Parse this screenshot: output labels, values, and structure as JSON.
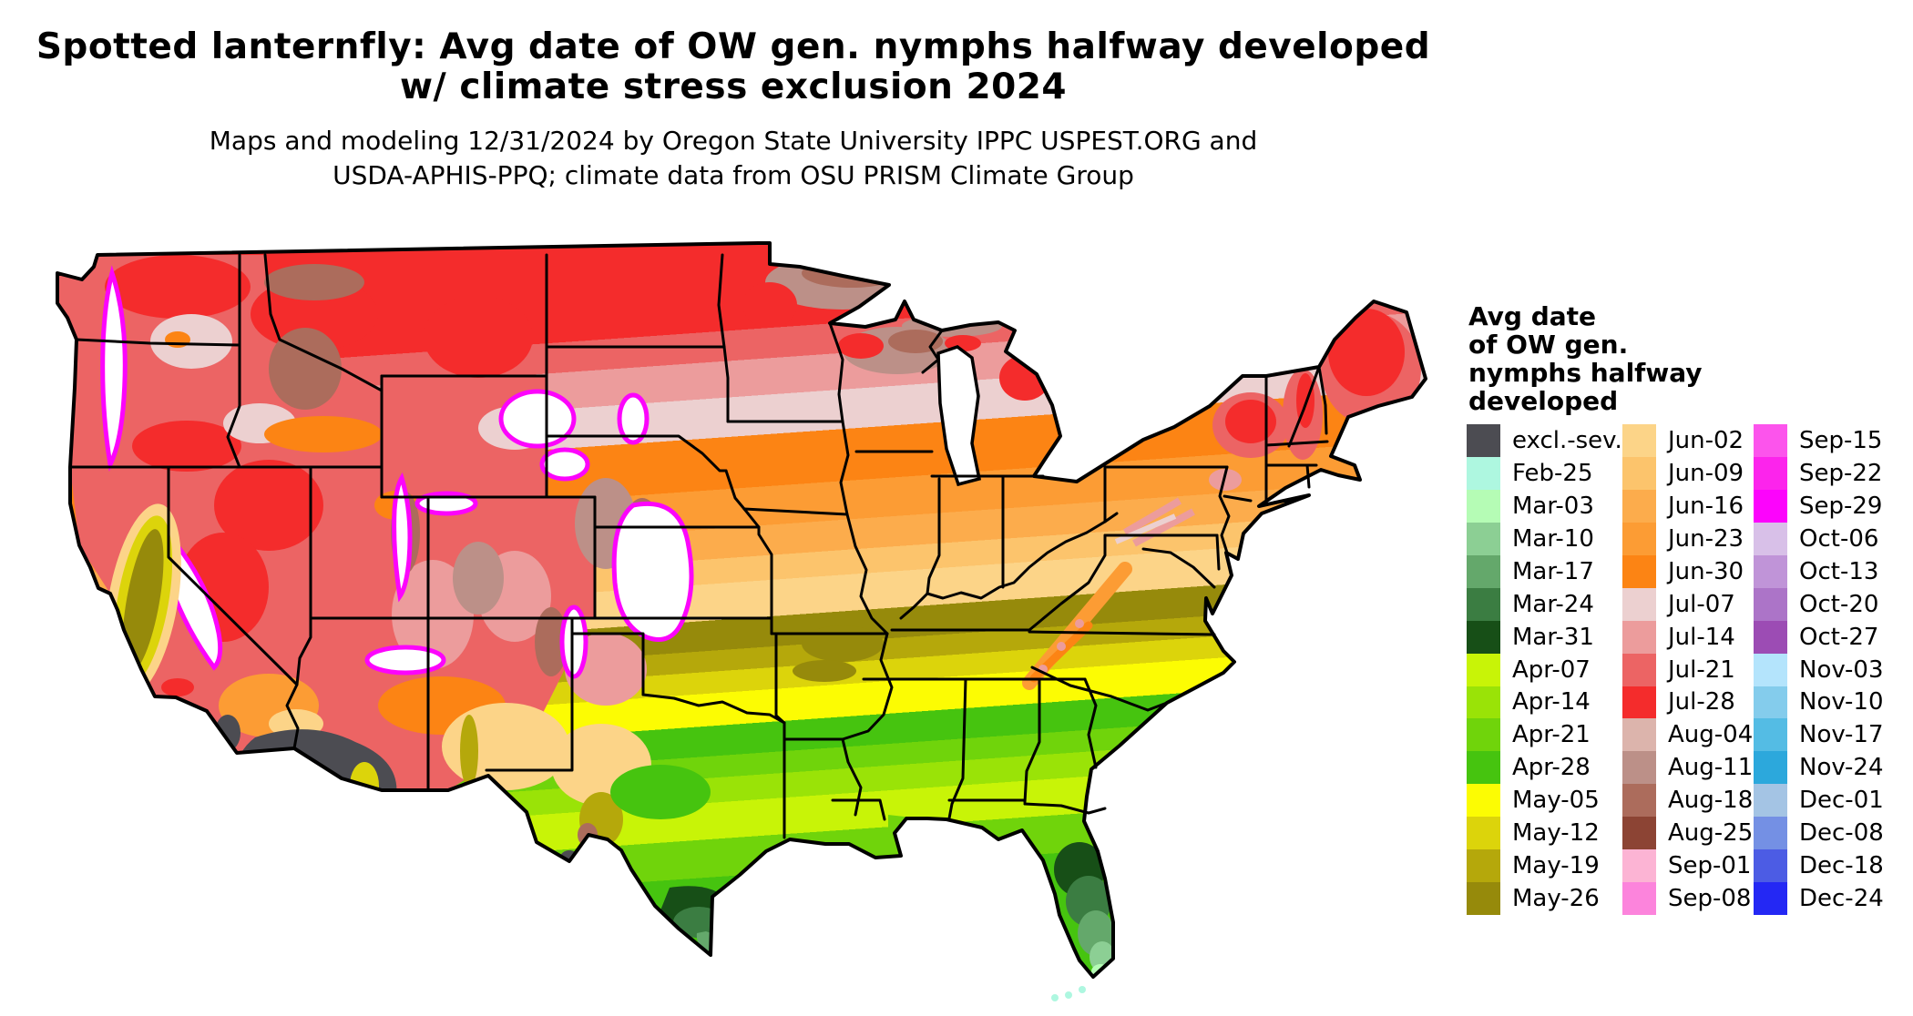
{
  "title": {
    "line1": "Spotted lanternfly: Avg date of OW gen. nymphs halfway developed",
    "line2": "w/ climate stress exclusion 2024"
  },
  "subtitle": {
    "line1": "Maps and modeling 12/31/2024 by Oregon State University IPPC USPEST.ORG and",
    "line2": "USDA-APHIS-PPQ; climate data from OSU PRISM Climate Group"
  },
  "legend": {
    "title_lines": [
      "Avg date",
      "of OW gen.",
      "nymphs halfway",
      "developed"
    ],
    "columns": [
      {
        "entries": [
          {
            "label": "excl.-sev.",
            "color": "#4c4c52"
          },
          {
            "label": "Feb-25",
            "color": "#aef7e0"
          },
          {
            "label": "Mar-03",
            "color": "#b5fcb5"
          },
          {
            "label": "Mar-10",
            "color": "#8ccf94"
          },
          {
            "label": "Mar-17",
            "color": "#64a86b"
          },
          {
            "label": "Mar-24",
            "color": "#3b7d42"
          },
          {
            "label": "Mar-31",
            "color": "#174f17"
          },
          {
            "label": "Apr-07",
            "color": "#c8f407"
          },
          {
            "label": "Apr-14",
            "color": "#9ae307"
          },
          {
            "label": "Apr-21",
            "color": "#70d40b"
          },
          {
            "label": "Apr-28",
            "color": "#46c40f"
          },
          {
            "label": "May-05",
            "color": "#fcfc03"
          },
          {
            "label": "May-12",
            "color": "#dcd40b"
          },
          {
            "label": "May-19",
            "color": "#b5a80b"
          },
          {
            "label": "May-26",
            "color": "#968a0b"
          }
        ]
      },
      {
        "entries": [
          {
            "label": "Jun-02",
            "color": "#fcd488"
          },
          {
            "label": "Jun-09",
            "color": "#fcc46c"
          },
          {
            "label": "Jun-16",
            "color": "#fcac4c"
          },
          {
            "label": "Jun-23",
            "color": "#fc9c34"
          },
          {
            "label": "Jun-30",
            "color": "#fc8414"
          },
          {
            "label": "Jul-07",
            "color": "#ecd0d0"
          },
          {
            "label": "Jul-14",
            "color": "#ec9c9c"
          },
          {
            "label": "Jul-21",
            "color": "#ec6464"
          },
          {
            "label": "Jul-28",
            "color": "#f42c2c"
          },
          {
            "label": "Aug-04",
            "color": "#dcb4ac"
          },
          {
            "label": "Aug-11",
            "color": "#bc9088"
          },
          {
            "label": "Aug-18",
            "color": "#ac6c5c"
          },
          {
            "label": "Aug-25",
            "color": "#8c4434"
          },
          {
            "label": "Sep-01",
            "color": "#fcb4d4"
          },
          {
            "label": "Sep-08",
            "color": "#fc84dc"
          }
        ]
      },
      {
        "entries": [
          {
            "label": "Sep-15",
            "color": "#fc54ec"
          },
          {
            "label": "Sep-22",
            "color": "#fc24ec"
          },
          {
            "label": "Sep-29",
            "color": "#fc04fc"
          },
          {
            "label": "Oct-06",
            "color": "#d8c0e8"
          },
          {
            "label": "Oct-13",
            "color": "#c094d8"
          },
          {
            "label": "Oct-20",
            "color": "#ac74c8"
          },
          {
            "label": "Oct-27",
            "color": "#9c4cb4"
          },
          {
            "label": "Nov-03",
            "color": "#b4e4fc"
          },
          {
            "label": "Nov-10",
            "color": "#84ccec"
          },
          {
            "label": "Nov-17",
            "color": "#54bce4"
          },
          {
            "label": "Nov-24",
            "color": "#2ca8dc"
          },
          {
            "label": "Dec-01",
            "color": "#a4c4e4"
          },
          {
            "label": "Dec-08",
            "color": "#7490e4"
          },
          {
            "label": "Dec-18",
            "color": "#4c5ce4"
          },
          {
            "label": "Dec-24",
            "color": "#2428f4"
          }
        ]
      }
    ]
  },
  "map_bands": [
    {
      "date": "Jul-28",
      "color": "#f42c2c",
      "from": 0,
      "to": 12.7
    },
    {
      "date": "Jul-21",
      "color": "#ec6464",
      "from": 12.7,
      "to": 16.6
    },
    {
      "date": "Jul-14",
      "color": "#ec9c9c",
      "from": 16.6,
      "to": 21.3
    },
    {
      "date": "Jul-07",
      "color": "#ecd0d0",
      "from": 21.3,
      "to": 26.4
    },
    {
      "date": "Jun-30",
      "color": "#fc8414",
      "from": 26.4,
      "to": 33.1
    },
    {
      "date": "Jun-23",
      "color": "#fc9c34",
      "from": 33.1,
      "to": 38.1
    },
    {
      "date": "Jun-16",
      "color": "#fcac4c",
      "from": 38.1,
      "to": 42.0
    },
    {
      "date": "Jun-09",
      "color": "#fcc46c",
      "from": 42.0,
      "to": 45.2
    },
    {
      "date": "Jun-02",
      "color": "#fcd488",
      "from": 45.2,
      "to": 49.9
    },
    {
      "date": "May-26",
      "color": "#968a0b",
      "from": 49.9,
      "to": 53.8
    },
    {
      "date": "May-19",
      "color": "#b5a80b",
      "from": 53.8,
      "to": 56.5
    },
    {
      "date": "May-12",
      "color": "#dcd40b",
      "from": 56.5,
      "to": 59.3
    },
    {
      "date": "May-05",
      "color": "#fcfc03",
      "from": 59.3,
      "to": 63.5
    },
    {
      "date": "Apr-28",
      "color": "#46c40f",
      "from": 63.5,
      "to": 67.4
    },
    {
      "date": "Apr-21",
      "color": "#70d40b",
      "from": 67.4,
      "to": 70.2
    },
    {
      "date": "Apr-14",
      "color": "#9ae307",
      "from": 70.2,
      "to": 73.4
    },
    {
      "date": "Apr-07",
      "color": "#c8f407",
      "from": 73.4,
      "to": 78.1
    },
    {
      "date": "Apr-21b",
      "color": "#70d40b",
      "from": 78.1,
      "to": 83.0
    },
    {
      "date": "Apr-28b",
      "color": "#46c40f",
      "from": 83.0,
      "to": 100
    }
  ]
}
